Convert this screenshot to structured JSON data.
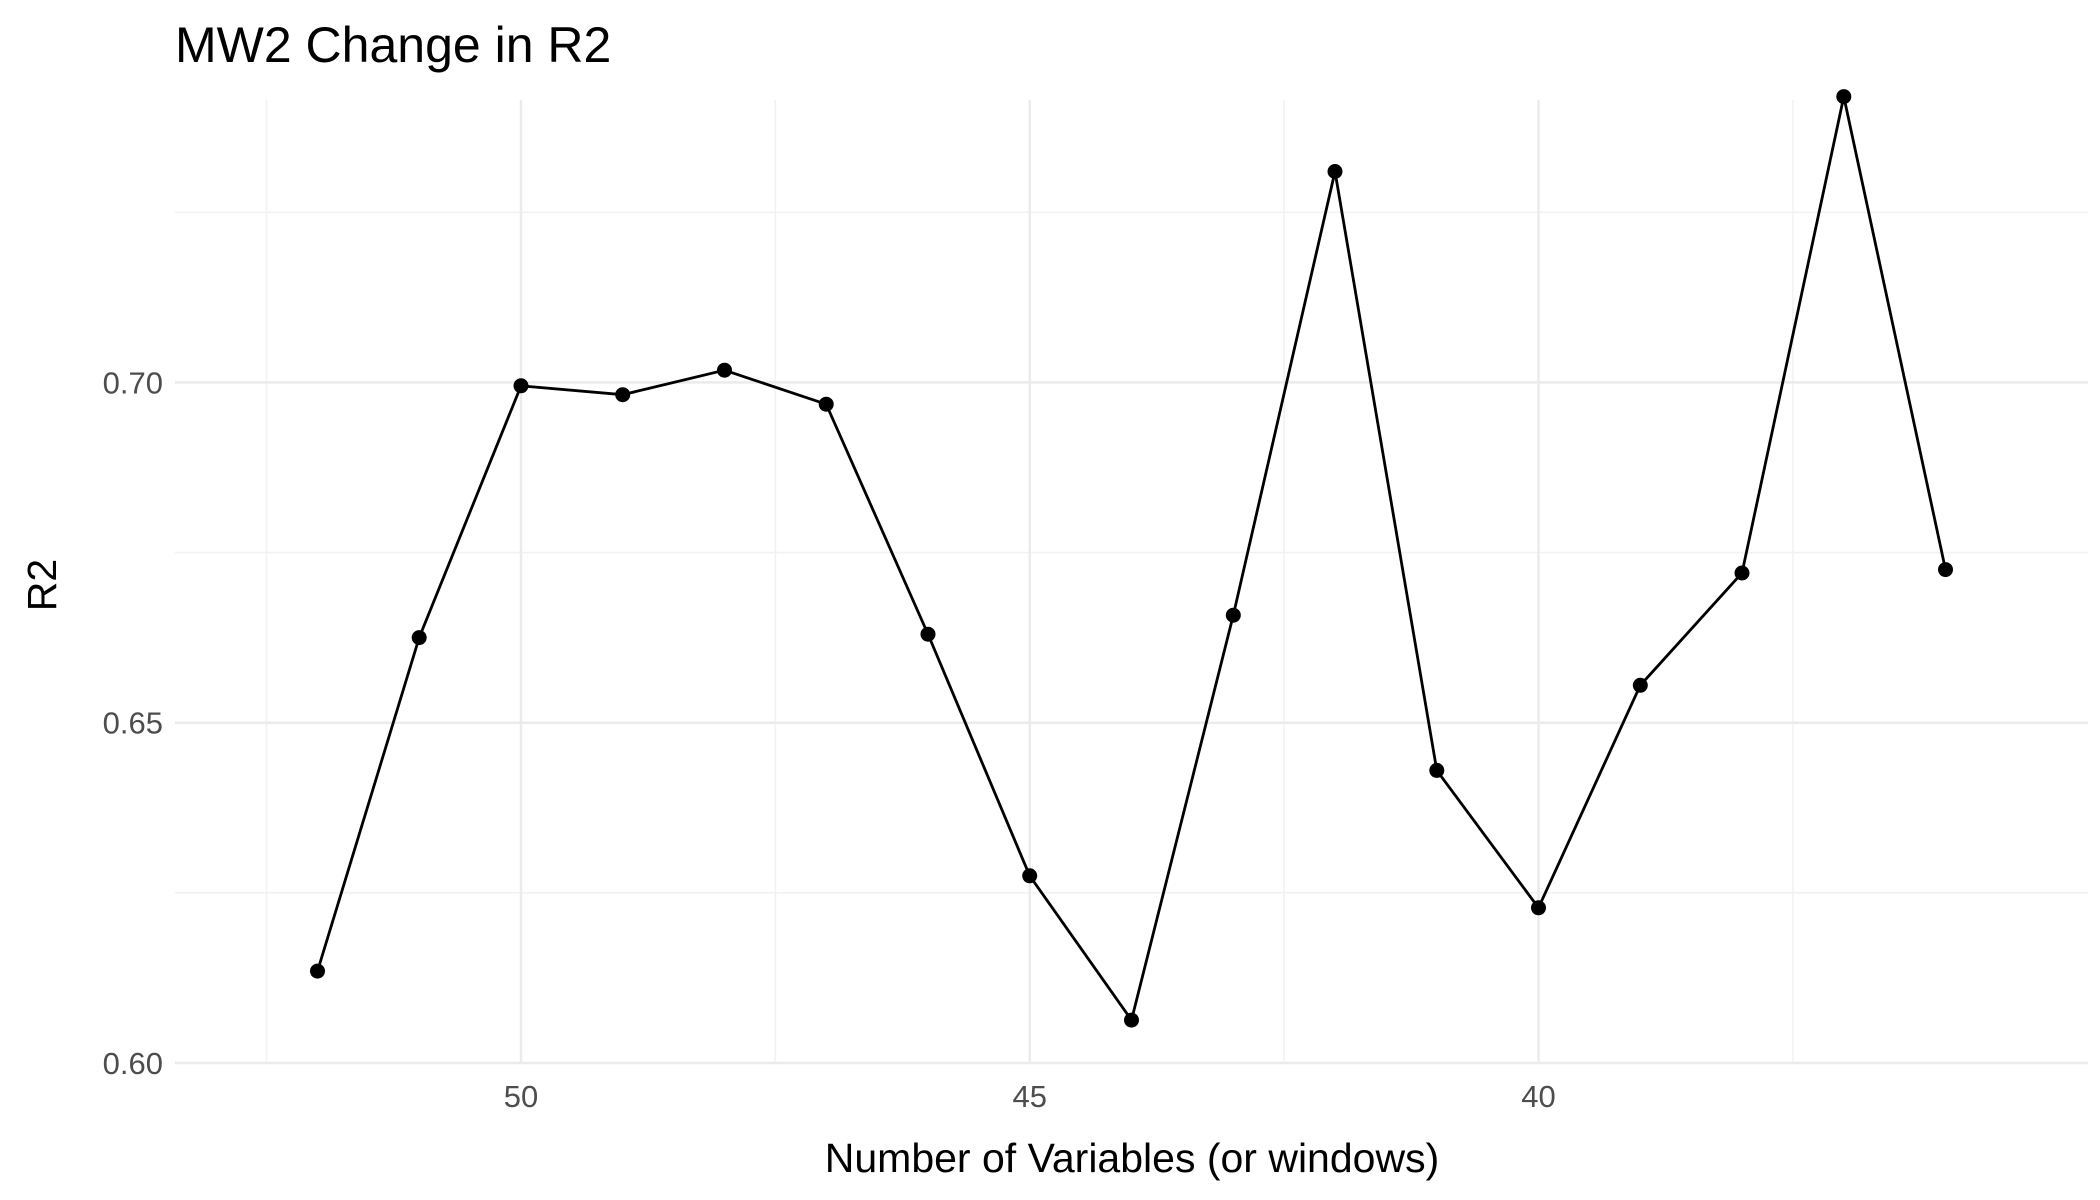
{
  "chart_data": {
    "type": "line",
    "title": "MW2 Change in R2",
    "xlabel": "Number of Variables (or windows)",
    "ylabel": "R2",
    "x_reversed": true,
    "xlim": [
      53.4,
      34.6
    ],
    "ylim": [
      0.6,
      0.7415
    ],
    "x_ticks": [
      50,
      45,
      40
    ],
    "y_ticks": [
      0.6,
      0.65,
      0.7
    ],
    "y_tick_labels": [
      "0.60",
      "0.65",
      "0.70"
    ],
    "grid": true,
    "legend": "none",
    "x": [
      52,
      51,
      50,
      49,
      48,
      47,
      46,
      45,
      44,
      43,
      42,
      41,
      40,
      39,
      38,
      37,
      36
    ],
    "values": [
      0.6135,
      0.6625,
      0.6995,
      0.6982,
      0.7018,
      0.6968,
      0.663,
      0.6275,
      0.6063,
      0.6658,
      0.731,
      0.643,
      0.6228,
      0.6555,
      0.672,
      0.742,
      0.6725
    ],
    "colors": {
      "line": "#000000",
      "grid": "#ebebeb",
      "tick_text": "#4d4d4d"
    }
  }
}
